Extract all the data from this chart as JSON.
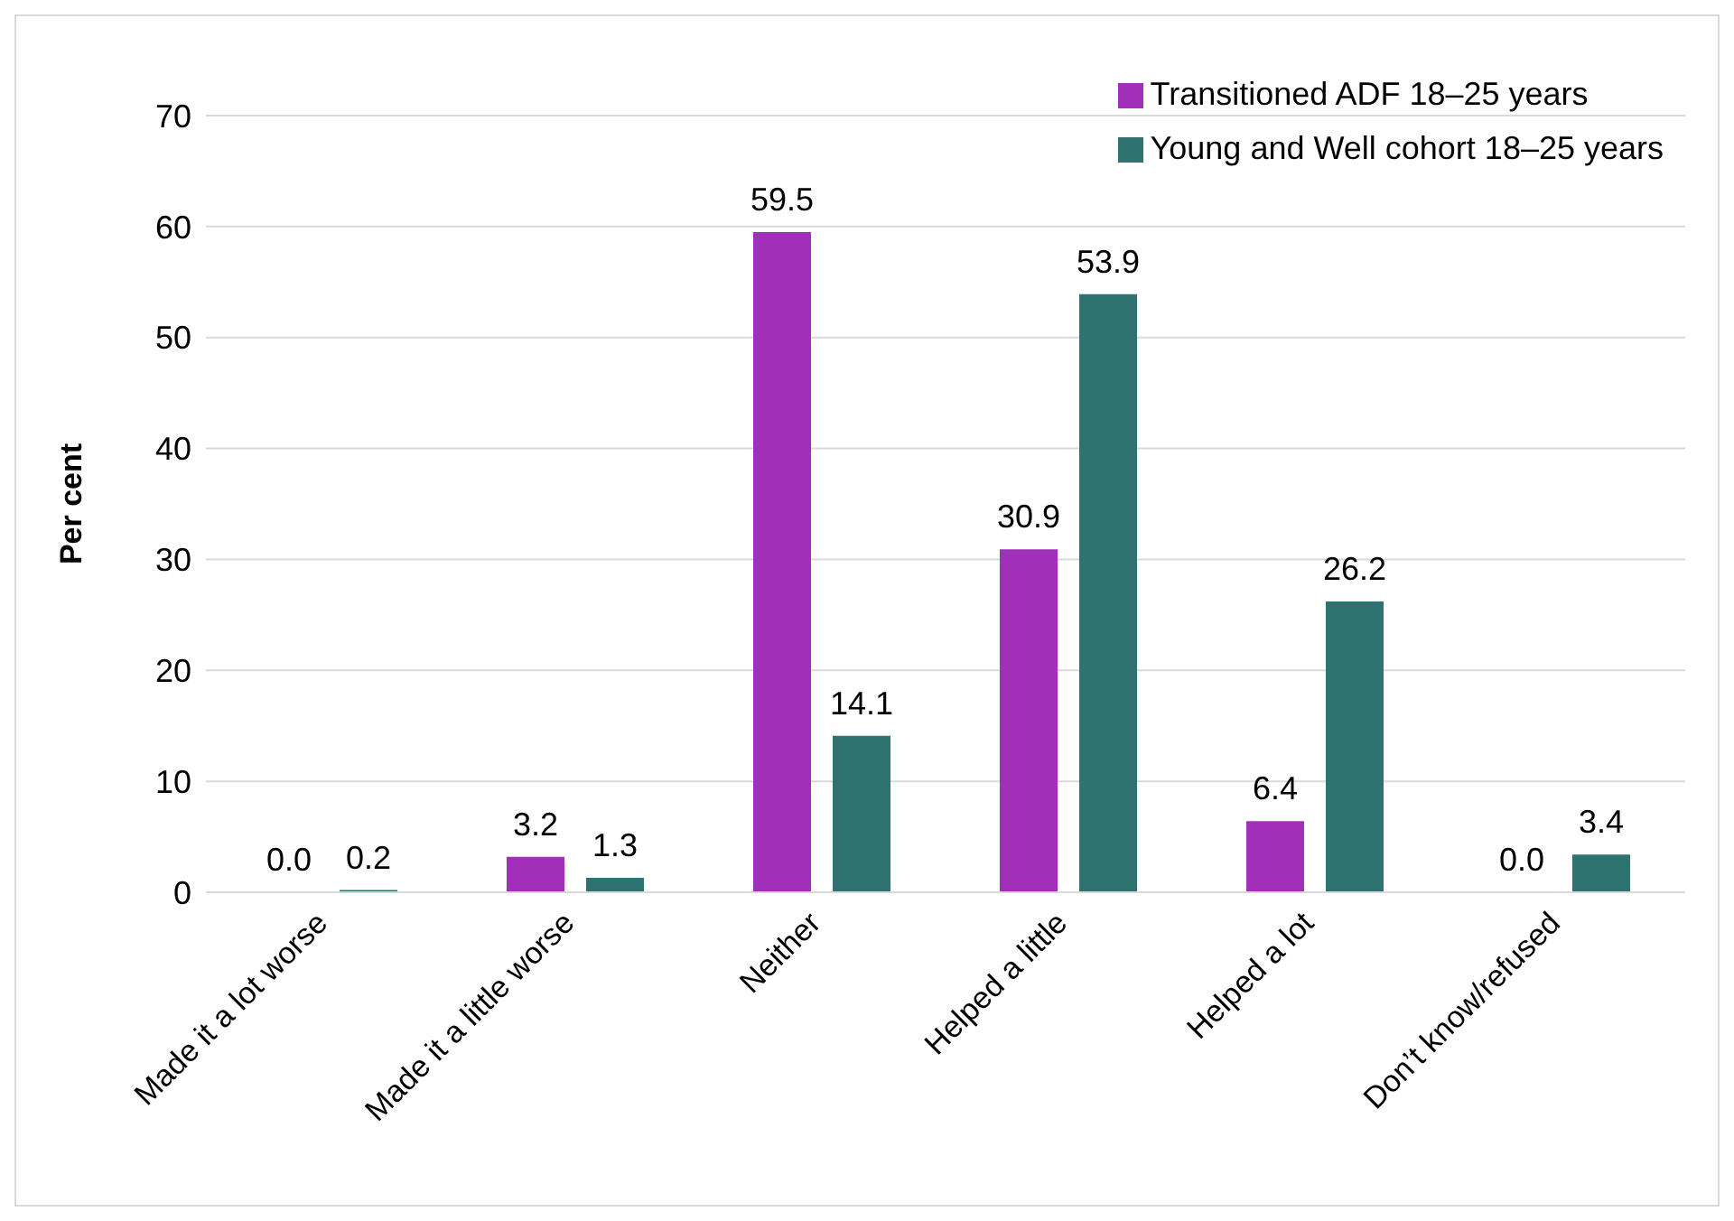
{
  "chart_data": {
    "type": "bar",
    "ylabel": "Per cent",
    "categories": [
      "Made it a lot worse",
      "Made it a little worse",
      "Neither",
      "Helped a little",
      "Helped a lot",
      "Don’t know/refused"
    ],
    "series": [
      {
        "name": "Transitioned ADF 18–25 years",
        "color": "#a030b8",
        "values": [
          0.0,
          3.2,
          59.5,
          30.9,
          6.4,
          0.0
        ],
        "value_labels": [
          "0.0",
          "3.2",
          "59.5",
          "30.9",
          "6.4",
          "0.0"
        ]
      },
      {
        "name": "Young and Well cohort 18–25 years",
        "color": "#2e7370",
        "values": [
          0.2,
          1.3,
          14.1,
          53.9,
          26.2,
          3.4
        ],
        "value_labels": [
          "0.2",
          "1.3",
          "14.1",
          "53.9",
          "26.2",
          "3.4"
        ]
      }
    ],
    "ylim": [
      0,
      70
    ],
    "yticks": [
      0,
      10,
      20,
      30,
      40,
      50,
      60,
      70
    ],
    "grid": "y",
    "legend": "top right"
  }
}
